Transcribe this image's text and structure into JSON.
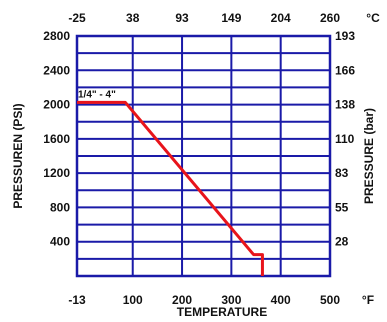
{
  "chart_data": {
    "type": "line",
    "title": "",
    "xlabel": "TEMPERATURE",
    "ylabel_left": "PRESSUREN (PSI)",
    "ylabel_right": "PRESSURE (bar)",
    "x_unit_bottom": "°F",
    "x_unit_top": "°C",
    "xlim": [
      -13,
      500
    ],
    "ylim": [
      0,
      2800
    ],
    "grid": true,
    "x_bottom_ticks": [
      {
        "value": -13,
        "label": "-13"
      },
      {
        "value": 100,
        "label": "100"
      },
      {
        "value": 200,
        "label": "200"
      },
      {
        "value": 300,
        "label": "300"
      },
      {
        "value": 400,
        "label": "400"
      },
      {
        "value": 500,
        "label": "500"
      }
    ],
    "x_top_ticks": [
      {
        "value": -13,
        "label": "-25"
      },
      {
        "value": 100,
        "label": "38"
      },
      {
        "value": 200,
        "label": "93"
      },
      {
        "value": 300,
        "label": "149"
      },
      {
        "value": 400,
        "label": "204"
      },
      {
        "value": 500,
        "label": "260"
      }
    ],
    "y_left_ticks": [
      {
        "value": 400,
        "label": "400"
      },
      {
        "value": 800,
        "label": "800"
      },
      {
        "value": 1200,
        "label": "1200"
      },
      {
        "value": 1600,
        "label": "1600"
      },
      {
        "value": 2000,
        "label": "2000"
      },
      {
        "value": 2400,
        "label": "2400"
      },
      {
        "value": 2800,
        "label": "2800"
      }
    ],
    "y_right_ticks": [
      {
        "value": 400,
        "label": "28"
      },
      {
        "value": 800,
        "label": "55"
      },
      {
        "value": 1200,
        "label": "83"
      },
      {
        "value": 1600,
        "label": "110"
      },
      {
        "value": 2000,
        "label": "138"
      },
      {
        "value": 2400,
        "label": "166"
      },
      {
        "value": 2800,
        "label": "193"
      }
    ],
    "grid_x": [
      -13,
      100,
      200,
      300,
      400,
      500
    ],
    "grid_y": [
      200,
      400,
      600,
      800,
      1000,
      1200,
      1400,
      1600,
      1800,
      2000,
      2200,
      2400,
      2600,
      2800
    ],
    "series": [
      {
        "name": "1/4\" - 4\"",
        "color": "#e8141b",
        "x": [
          -13,
          85,
          345,
          363,
          363
        ],
        "y": [
          2025,
          2025,
          250,
          250,
          0
        ]
      }
    ],
    "annotations": [
      {
        "text": "1/4\" - 4\"",
        "x": -11,
        "y": 2080
      }
    ],
    "colors": {
      "grid": "#1a1aa8",
      "frame": "#1a1aa8",
      "line": "#e8141b",
      "text": "#111111"
    }
  }
}
